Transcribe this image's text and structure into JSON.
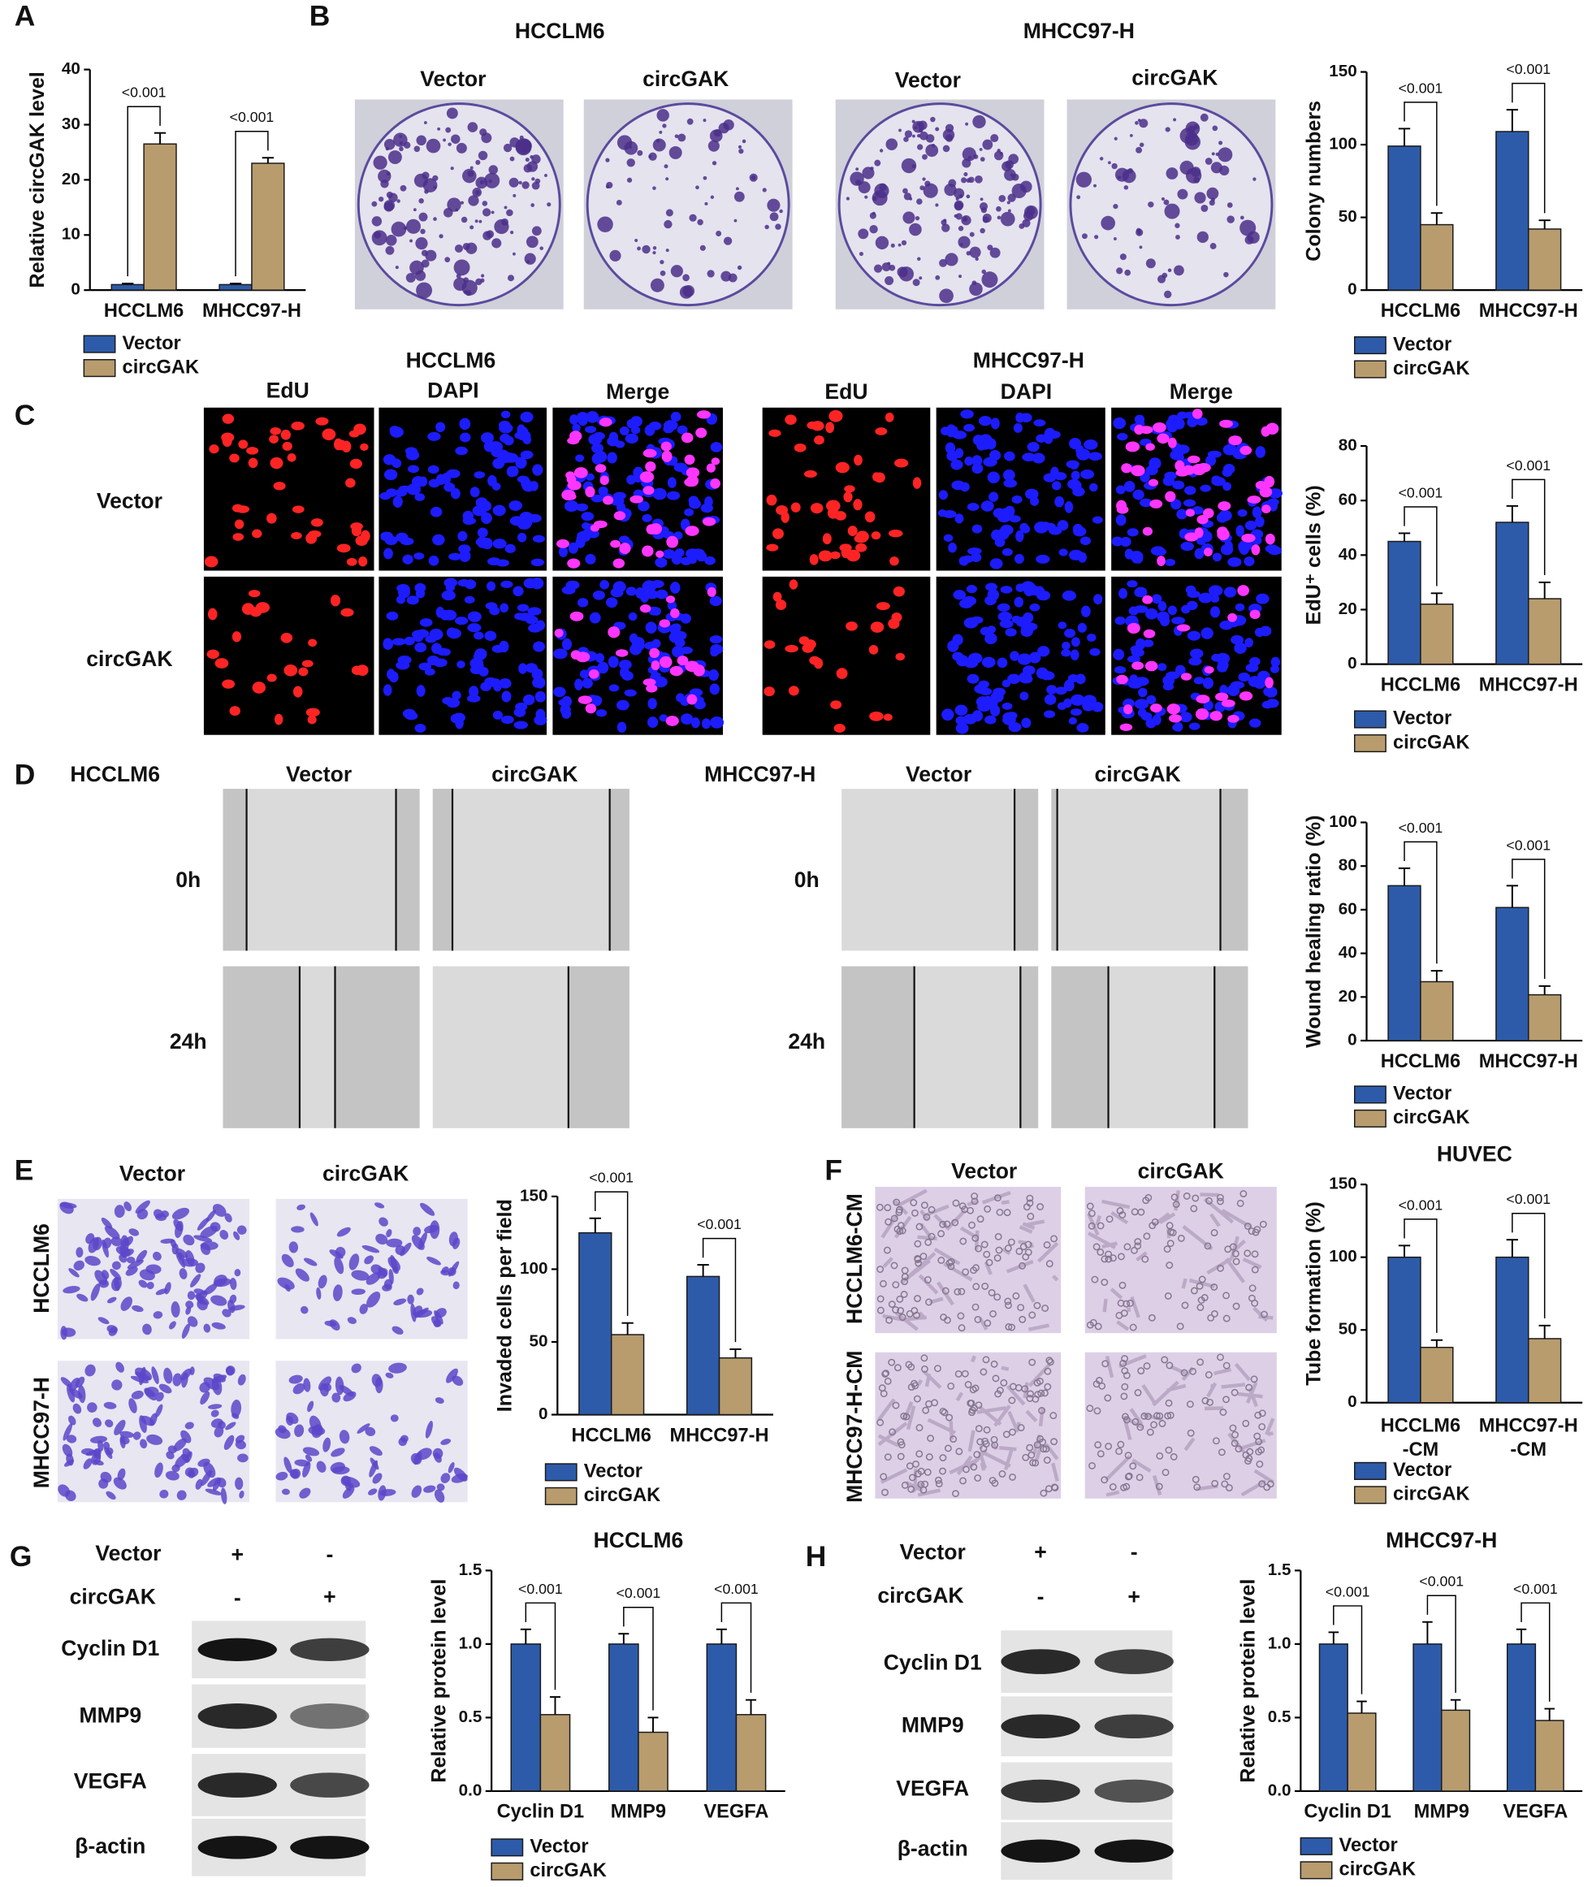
{
  "panel_labels": [
    "A",
    "B",
    "C",
    "D",
    "E",
    "F",
    "G",
    "H"
  ],
  "colony": {
    "cell_lines": [
      "HCCLM6",
      "MHCC97-H"
    ],
    "columns": [
      "Vector",
      "circGAK",
      "Vector",
      "circGAK"
    ]
  },
  "edu": {
    "cell_lines": [
      "HCCLM6",
      "MHCC97-H"
    ],
    "channels": [
      "EdU",
      "DAPI",
      "Merge",
      "EdU",
      "DAPI",
      "Merge"
    ],
    "rows": [
      "Vector",
      "circGAK"
    ]
  },
  "wound": {
    "cell_lines": [
      "HCCLM6",
      "MHCC97-H"
    ],
    "columns": [
      "Vector",
      "circGAK",
      "Vector",
      "circGAK"
    ],
    "rows": [
      "0h",
      "24h",
      "0h",
      "24h"
    ]
  },
  "transwell": {
    "columns": [
      "Vector",
      "circGAK"
    ],
    "rows": [
      "HCCLM6",
      "MHCC97-H"
    ]
  },
  "tube": {
    "columns": [
      "Vector",
      "circGAK"
    ],
    "rows": [
      "HCCLM6-CM",
      "MHCC97-H-CM"
    ]
  },
  "blot_g": {
    "conditions": [
      "Vector",
      "circGAK"
    ],
    "signs": [
      [
        "+",
        "-"
      ],
      [
        "-",
        "+"
      ]
    ],
    "proteins": [
      "Cyclin D1",
      "MMP9",
      "VEGFA",
      "β-actin"
    ]
  },
  "blot_h": {
    "conditions": [
      "Vector",
      "circGAK"
    ],
    "signs": [
      [
        "+",
        "-"
      ],
      [
        "-",
        "+"
      ]
    ],
    "proteins": [
      "Cyclin D1",
      "MMP9",
      "VEGFA",
      "β-actin"
    ]
  },
  "chart_data": [
    {
      "type": "bar",
      "y_label": "Relative circGAK level",
      "categories": [
        "HCCLM6",
        "MHCC97-H"
      ],
      "series": [
        {
          "name": "Vector",
          "color": "#2d5ba9",
          "values": [
            1,
            1
          ],
          "errors": [
            0.2,
            0.2
          ]
        },
        {
          "name": "circGAK",
          "color": "#b89c6e",
          "values": [
            26.5,
            23
          ],
          "errors": [
            2,
            1
          ]
        }
      ],
      "ylim": [
        0,
        40
      ],
      "yticks": [
        0,
        10,
        20,
        30,
        40
      ],
      "p_values": [
        "<0.001",
        "<0.001"
      ]
    },
    {
      "type": "bar",
      "y_label": "Colony numbers",
      "categories": [
        "HCCLM6",
        "MHCC97-H"
      ],
      "series": [
        {
          "name": "Vector",
          "color": "#2d5ba9",
          "values": [
            99,
            109
          ],
          "errors": [
            12,
            15
          ]
        },
        {
          "name": "circGAK",
          "color": "#b89c6e",
          "values": [
            45,
            42
          ],
          "errors": [
            8,
            6
          ]
        }
      ],
      "ylim": [
        0,
        150
      ],
      "yticks": [
        0,
        50,
        100,
        150
      ],
      "p_values": [
        "<0.001",
        "<0.001"
      ]
    },
    {
      "type": "bar",
      "y_label": "EdU⁺ cells (%)",
      "categories": [
        "HCCLM6",
        "MHCC97-H"
      ],
      "series": [
        {
          "name": "Vector",
          "color": "#2d5ba9",
          "values": [
            45,
            52
          ],
          "errors": [
            3,
            6
          ]
        },
        {
          "name": "circGAK",
          "color": "#b89c6e",
          "values": [
            22,
            24
          ],
          "errors": [
            4,
            6
          ]
        }
      ],
      "ylim": [
        0,
        80
      ],
      "yticks": [
        0,
        20,
        40,
        60,
        80
      ],
      "p_values": [
        "<0.001",
        "<0.001"
      ]
    },
    {
      "type": "bar",
      "y_label": "Wound healing ratio (%)",
      "categories": [
        "HCCLM6",
        "MHCC97-H"
      ],
      "series": [
        {
          "name": "Vector",
          "color": "#2d5ba9",
          "values": [
            71,
            61
          ],
          "errors": [
            8,
            10
          ]
        },
        {
          "name": "circGAK",
          "color": "#b89c6e",
          "values": [
            27,
            21
          ],
          "errors": [
            5,
            4
          ]
        }
      ],
      "ylim": [
        0,
        100
      ],
      "yticks": [
        0,
        20,
        40,
        60,
        80,
        100
      ],
      "p_values": [
        "<0.001",
        "<0.001"
      ]
    },
    {
      "type": "bar",
      "y_label": "Invaded cells per field",
      "categories": [
        "HCCLM6",
        "MHCC97-H"
      ],
      "series": [
        {
          "name": "Vector",
          "color": "#2d5ba9",
          "values": [
            125,
            95
          ],
          "errors": [
            10,
            8
          ]
        },
        {
          "name": "circGAK",
          "color": "#b89c6e",
          "values": [
            55,
            39
          ],
          "errors": [
            8,
            6
          ]
        }
      ],
      "ylim": [
        0,
        150
      ],
      "yticks": [
        0,
        50,
        100,
        150
      ],
      "p_values": [
        "<0.001",
        "<0.001"
      ]
    },
    {
      "type": "bar",
      "title": "HUVEC",
      "y_label": "Tube formation (%)",
      "categories": [
        "HCCLM6\n-CM",
        "MHCC97-H\n-CM"
      ],
      "series": [
        {
          "name": "Vector",
          "color": "#2d5ba9",
          "values": [
            100,
            100
          ],
          "errors": [
            8,
            12
          ]
        },
        {
          "name": "circGAK",
          "color": "#b89c6e",
          "values": [
            38,
            44
          ],
          "errors": [
            5,
            9
          ]
        }
      ],
      "ylim": [
        0,
        150
      ],
      "yticks": [
        0,
        50,
        100,
        150
      ],
      "p_values": [
        "<0.001",
        "<0.001"
      ]
    },
    {
      "type": "bar",
      "title": "HCCLM6",
      "y_label": "Relative protein level",
      "categories": [
        "Cyclin D1",
        "MMP9",
        "VEGFA"
      ],
      "series": [
        {
          "name": "Vector",
          "color": "#2d5ba9",
          "values": [
            1.0,
            1.0,
            1.0
          ],
          "errors": [
            0.1,
            0.07,
            0.1
          ]
        },
        {
          "name": "circGAK",
          "color": "#b89c6e",
          "values": [
            0.52,
            0.4,
            0.52
          ],
          "errors": [
            0.12,
            0.1,
            0.1
          ]
        }
      ],
      "ylim": [
        0,
        1.5
      ],
      "yticks": [
        {
          "value": 0,
          "label": "0.0"
        },
        0.5,
        {
          "value": 1,
          "label": "1.0"
        },
        1.5
      ],
      "p_values": [
        "<0.001",
        "<0.001",
        "<0.001"
      ]
    },
    {
      "type": "bar",
      "title": "MHCC97-H",
      "y_label": "Relative protein level",
      "categories": [
        "Cyclin D1",
        "MMP9",
        "VEGFA"
      ],
      "series": [
        {
          "name": "Vector",
          "color": "#2d5ba9",
          "values": [
            1.0,
            1.0,
            1.0
          ],
          "errors": [
            0.08,
            0.15,
            0.1
          ]
        },
        {
          "name": "circGAK",
          "color": "#b89c6e",
          "values": [
            0.53,
            0.55,
            0.48
          ],
          "errors": [
            0.08,
            0.07,
            0.08
          ]
        }
      ],
      "ylim": [
        0,
        1.5
      ],
      "yticks": [
        {
          "value": 0,
          "label": "0.0"
        },
        0.5,
        {
          "value": 1,
          "label": "1.0"
        },
        1.5
      ],
      "p_values": [
        "<0.001",
        "<0.001",
        "<0.001"
      ]
    }
  ]
}
